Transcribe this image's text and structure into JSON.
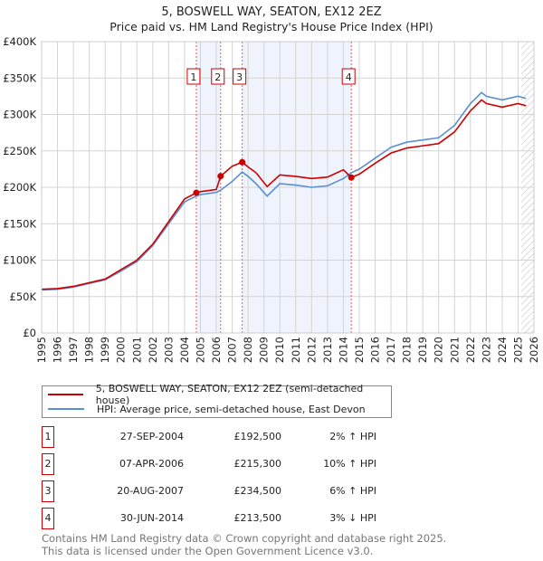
{
  "chart_data": {
    "type": "line",
    "title": "5, BOSWELL WAY, SEATON, EX12 2EZ",
    "subtitle": "Price paid vs. HM Land Registry's House Price Index (HPI)",
    "xlim": [
      1995,
      2026
    ],
    "ylim": [
      0,
      400000
    ],
    "yticks": [
      0,
      50000,
      100000,
      150000,
      200000,
      250000,
      300000,
      350000,
      400000
    ],
    "ytick_labels": [
      "£0",
      "£50K",
      "£100K",
      "£150K",
      "£200K",
      "£250K",
      "£300K",
      "£350K",
      "£400K"
    ],
    "xticks": [
      "1995",
      "1996",
      "1997",
      "1998",
      "1999",
      "2000",
      "2001",
      "2002",
      "2003",
      "2004",
      "2005",
      "2006",
      "2007",
      "2008",
      "2009",
      "2010",
      "2011",
      "2012",
      "2013",
      "2014",
      "2015",
      "2016",
      "2017",
      "2018",
      "2019",
      "2020",
      "2021",
      "2022",
      "2023",
      "2024",
      "2025",
      "2026"
    ],
    "grid": true,
    "series": [
      {
        "name": "5, BOSWELL WAY, SEATON, EX12 2EZ (semi-detached house)",
        "color": "#cc0000",
        "x": [
          1995,
          1996,
          1997,
          1998,
          1999,
          2000,
          2001,
          2002,
          2003,
          2004,
          2004.74,
          2005,
          2006,
          2006.27,
          2007,
          2007.63,
          2008,
          2008.5,
          2009.2,
          2010,
          2011,
          2012,
          2013,
          2014,
          2014.5,
          2015,
          2016,
          2017,
          2018,
          2019,
          2020,
          2021,
          2022,
          2022.7,
          2023,
          2024,
          2025,
          2025.5
        ],
        "y": [
          60000,
          61000,
          64000,
          69000,
          74000,
          87000,
          100000,
          122000,
          153000,
          184000,
          192500,
          194000,
          197000,
          215300,
          229000,
          234500,
          228000,
          220000,
          201000,
          217000,
          215000,
          212000,
          214000,
          224000,
          213500,
          218000,
          233000,
          247000,
          254000,
          257000,
          260000,
          276000,
          305000,
          320000,
          315000,
          310000,
          315000,
          312000
        ]
      },
      {
        "name": "HPI: Average price, semi-detached house, East Devon",
        "color": "#5b8fd4",
        "x": [
          1995,
          1996,
          1997,
          1998,
          1999,
          2000,
          2001,
          2002,
          2003,
          2004,
          2004.74,
          2005,
          2006,
          2006.27,
          2007,
          2007.63,
          2008,
          2008.5,
          2009.2,
          2010,
          2011,
          2012,
          2013,
          2014,
          2014.5,
          2015,
          2016,
          2017,
          2018,
          2019,
          2020,
          2021,
          2022,
          2022.7,
          2023,
          2024,
          2025,
          2025.5
        ],
        "y": [
          59000,
          60000,
          63000,
          68000,
          73000,
          85000,
          98000,
          120000,
          150000,
          180000,
          188000,
          190000,
          193000,
          196000,
          208000,
          221000,
          215000,
          205000,
          188000,
          205000,
          203000,
          200000,
          202000,
          212000,
          220000,
          225000,
          240000,
          255000,
          262000,
          265000,
          268000,
          285000,
          315000,
          330000,
          325000,
          320000,
          325000,
          322000
        ]
      }
    ],
    "sales": [
      {
        "id": "1",
        "x": 2004.74,
        "price": 192500,
        "date": "27-SEP-2004",
        "price_label": "£192,500",
        "hpi": "2% ↑ HPI"
      },
      {
        "id": "2",
        "x": 2006.27,
        "price": 215300,
        "date": "07-APR-2006",
        "price_label": "£215,300",
        "hpi": "10% ↑ HPI"
      },
      {
        "id": "3",
        "x": 2007.63,
        "price": 234500,
        "date": "20-AUG-2007",
        "price_label": "£234,500",
        "hpi": "6% ↑ HPI"
      },
      {
        "id": "4",
        "x": 2014.5,
        "price": 213500,
        "date": "30-JUN-2014",
        "price_label": "£213,500",
        "hpi": "3% ↓ HPI"
      }
    ],
    "shaded": [
      [
        2004.74,
        2006.27
      ],
      [
        2007.63,
        2014.5
      ]
    ],
    "forecast_start": 2025.2,
    "legend": {
      "position": "bottom"
    }
  },
  "footer": [
    "Contains HM Land Registry data © Crown copyright and database right 2025.",
    "This data is licensed under the Open Government Licence v3.0."
  ]
}
